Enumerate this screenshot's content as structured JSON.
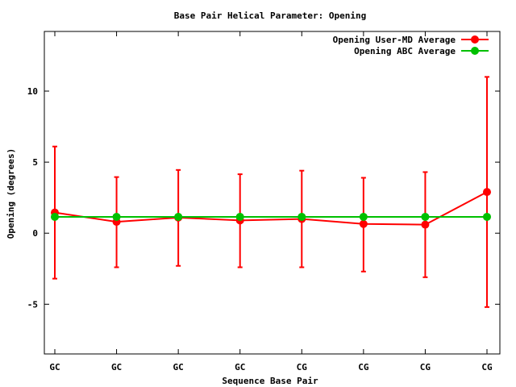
{
  "chart_data": {
    "type": "line",
    "title": "Base Pair Helical Parameter: Opening",
    "xlabel": "Sequence Base Pair",
    "ylabel": "Opening (degrees)",
    "categories": [
      "GC",
      "GC",
      "GC",
      "GC",
      "CG",
      "CG",
      "CG",
      "CG"
    ],
    "ylim": [
      -8.5,
      14.2
    ],
    "yticks": [
      -5,
      0,
      5,
      10
    ],
    "ytick_labels": [
      "-5",
      "0",
      "5",
      "10"
    ],
    "grid": false,
    "legend_position": "top-right",
    "series": [
      {
        "name": "Opening User-MD Average",
        "color": "#ff0000",
        "values": [
          1.45,
          0.8,
          1.1,
          0.9,
          1.0,
          0.65,
          0.6,
          2.9
        ],
        "error_low": [
          -3.2,
          -2.4,
          -2.3,
          -2.4,
          -2.4,
          -2.7,
          -3.1,
          -5.2
        ],
        "error_high": [
          6.1,
          3.95,
          4.45,
          4.15,
          4.4,
          3.9,
          4.3,
          11.0
        ]
      },
      {
        "name": "Opening ABC Average",
        "color": "#00c000",
        "values": [
          1.15,
          1.15,
          1.15,
          1.15,
          1.15,
          1.15,
          1.15,
          1.15
        ]
      }
    ]
  }
}
